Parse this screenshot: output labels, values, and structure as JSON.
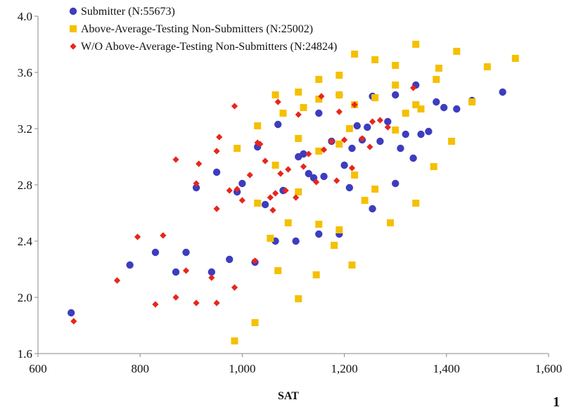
{
  "chart_data": {
    "type": "scatter",
    "xlabel": "SAT",
    "ylabel": "",
    "xlim": [
      600,
      1600
    ],
    "ylim": [
      1.6,
      4.0
    ],
    "x_ticks": [
      "600",
      "800",
      "1,000",
      "1,200",
      "1,400",
      "1,600"
    ],
    "y_ticks": [
      "1.6",
      "2.0",
      "2.4",
      "2.8",
      "3.2",
      "3.6",
      "4.0"
    ],
    "grid": false,
    "legend": "top-left",
    "series": [
      {
        "name": "Submitter (N:55673)",
        "marker": "circle",
        "color": "#3d3dbf",
        "points": [
          [
            665,
            1.89
          ],
          [
            780,
            2.23
          ],
          [
            830,
            2.32
          ],
          [
            870,
            2.18
          ],
          [
            890,
            2.32
          ],
          [
            910,
            2.78
          ],
          [
            940,
            2.18
          ],
          [
            950,
            2.89
          ],
          [
            975,
            2.27
          ],
          [
            990,
            2.75
          ],
          [
            1000,
            2.81
          ],
          [
            1025,
            2.25
          ],
          [
            1030,
            3.07
          ],
          [
            1045,
            2.66
          ],
          [
            1065,
            2.4
          ],
          [
            1070,
            3.23
          ],
          [
            1080,
            2.76
          ],
          [
            1105,
            2.4
          ],
          [
            1110,
            3.0
          ],
          [
            1120,
            3.02
          ],
          [
            1130,
            2.88
          ],
          [
            1140,
            2.85
          ],
          [
            1150,
            2.45
          ],
          [
            1150,
            3.31
          ],
          [
            1160,
            2.86
          ],
          [
            1175,
            3.11
          ],
          [
            1190,
            2.45
          ],
          [
            1190,
            3.44
          ],
          [
            1200,
            2.94
          ],
          [
            1210,
            2.78
          ],
          [
            1215,
            3.06
          ],
          [
            1225,
            3.22
          ],
          [
            1235,
            3.12
          ],
          [
            1245,
            3.21
          ],
          [
            1255,
            2.63
          ],
          [
            1255,
            3.43
          ],
          [
            1270,
            3.11
          ],
          [
            1285,
            3.25
          ],
          [
            1300,
            2.81
          ],
          [
            1300,
            3.44
          ],
          [
            1310,
            3.06
          ],
          [
            1320,
            3.16
          ],
          [
            1335,
            2.99
          ],
          [
            1340,
            3.51
          ],
          [
            1350,
            3.16
          ],
          [
            1365,
            3.18
          ],
          [
            1380,
            3.39
          ],
          [
            1395,
            3.35
          ],
          [
            1420,
            3.34
          ],
          [
            1450,
            3.4
          ],
          [
            1510,
            3.46
          ]
        ]
      },
      {
        "name": "Above-Average-Testing Non-Submitters (N:25002)",
        "marker": "square",
        "color": "#f5c000",
        "points": [
          [
            985,
            1.69
          ],
          [
            990,
            3.06
          ],
          [
            1025,
            1.82
          ],
          [
            1030,
            3.22
          ],
          [
            1030,
            2.67
          ],
          [
            1055,
            2.42
          ],
          [
            1065,
            3.44
          ],
          [
            1065,
            2.94
          ],
          [
            1070,
            2.19
          ],
          [
            1080,
            3.31
          ],
          [
            1090,
            2.53
          ],
          [
            1110,
            3.46
          ],
          [
            1110,
            3.13
          ],
          [
            1110,
            2.75
          ],
          [
            1110,
            1.99
          ],
          [
            1120,
            3.35
          ],
          [
            1145,
            2.16
          ],
          [
            1150,
            3.55
          ],
          [
            1150,
            3.41
          ],
          [
            1150,
            3.04
          ],
          [
            1150,
            2.52
          ],
          [
            1180,
            2.37
          ],
          [
            1190,
            3.58
          ],
          [
            1190,
            3.44
          ],
          [
            1190,
            3.09
          ],
          [
            1190,
            2.48
          ],
          [
            1210,
            3.2
          ],
          [
            1215,
            2.23
          ],
          [
            1220,
            3.73
          ],
          [
            1220,
            3.37
          ],
          [
            1220,
            2.87
          ],
          [
            1240,
            2.69
          ],
          [
            1260,
            3.69
          ],
          [
            1260,
            3.42
          ],
          [
            1260,
            2.77
          ],
          [
            1290,
            2.53
          ],
          [
            1300,
            3.65
          ],
          [
            1300,
            3.51
          ],
          [
            1300,
            3.19
          ],
          [
            1320,
            3.31
          ],
          [
            1340,
            3.8
          ],
          [
            1340,
            3.37
          ],
          [
            1340,
            2.67
          ],
          [
            1350,
            3.34
          ],
          [
            1375,
            2.93
          ],
          [
            1380,
            3.55
          ],
          [
            1385,
            3.63
          ],
          [
            1410,
            3.11
          ],
          [
            1420,
            3.75
          ],
          [
            1450,
            3.39
          ],
          [
            1480,
            3.64
          ],
          [
            1535,
            3.7
          ]
        ]
      },
      {
        "name": "W/O Above-Average-Testing Non-Submitters (N:24824)",
        "marker": "diamond",
        "color": "#e8261c",
        "points": [
          [
            670,
            1.83
          ],
          [
            755,
            2.12
          ],
          [
            795,
            2.43
          ],
          [
            830,
            1.95
          ],
          [
            845,
            2.44
          ],
          [
            870,
            2.98
          ],
          [
            870,
            2.0
          ],
          [
            890,
            2.19
          ],
          [
            910,
            2.81
          ],
          [
            910,
            1.96
          ],
          [
            915,
            2.95
          ],
          [
            940,
            2.14
          ],
          [
            950,
            3.04
          ],
          [
            950,
            2.63
          ],
          [
            950,
            1.96
          ],
          [
            955,
            3.14
          ],
          [
            975,
            2.76
          ],
          [
            985,
            3.36
          ],
          [
            985,
            2.07
          ],
          [
            990,
            2.77
          ],
          [
            1000,
            2.69
          ],
          [
            1015,
            2.87
          ],
          [
            1025,
            2.26
          ],
          [
            1030,
            3.1
          ],
          [
            1035,
            3.09
          ],
          [
            1045,
            2.97
          ],
          [
            1055,
            2.71
          ],
          [
            1060,
            2.62
          ],
          [
            1065,
            2.74
          ],
          [
            1070,
            3.39
          ],
          [
            1075,
            2.88
          ],
          [
            1085,
            2.76
          ],
          [
            1090,
            2.91
          ],
          [
            1105,
            2.71
          ],
          [
            1110,
            3.3
          ],
          [
            1120,
            2.93
          ],
          [
            1130,
            3.02
          ],
          [
            1145,
            2.82
          ],
          [
            1155,
            3.43
          ],
          [
            1160,
            3.05
          ],
          [
            1175,
            3.11
          ],
          [
            1185,
            2.83
          ],
          [
            1190,
            3.32
          ],
          [
            1200,
            3.12
          ],
          [
            1215,
            2.92
          ],
          [
            1220,
            3.37
          ],
          [
            1235,
            3.13
          ],
          [
            1250,
            3.07
          ],
          [
            1255,
            3.25
          ],
          [
            1270,
            3.26
          ],
          [
            1285,
            3.21
          ],
          [
            1335,
            3.49
          ]
        ]
      }
    ]
  },
  "page_mark": "1"
}
